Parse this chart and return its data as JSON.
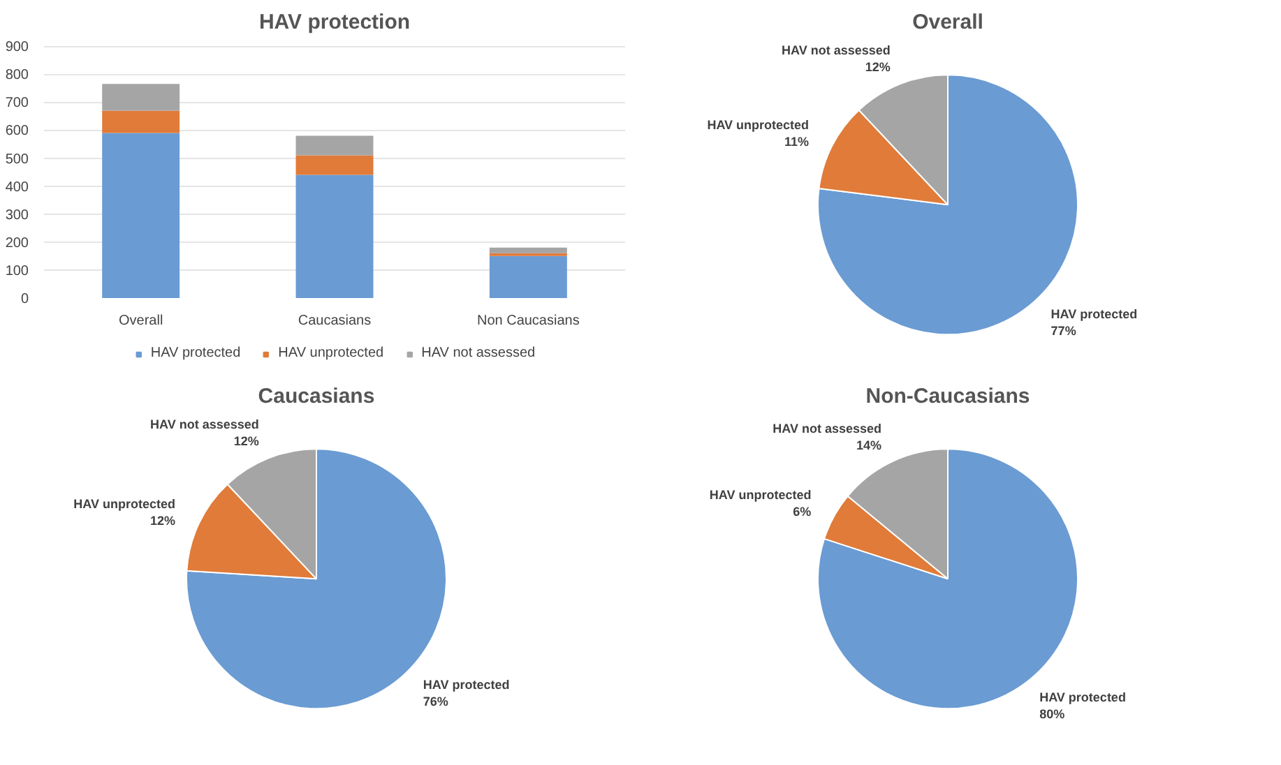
{
  "chart_data": [
    {
      "type": "bar",
      "title": "HAV protection",
      "categories": [
        "Overall",
        "Caucasians",
        "Non Caucasians"
      ],
      "stacked": true,
      "ylim": [
        0,
        900
      ],
      "yticks": [
        0,
        100,
        200,
        300,
        400,
        500,
        600,
        700,
        800,
        900
      ],
      "grid": "y",
      "legend": "bottom",
      "series": [
        {
          "name": "HAV protected",
          "color": "#6a9bd3",
          "values": [
            590,
            440,
            150
          ]
        },
        {
          "name": "HAV unprotected",
          "color": "#e07b39",
          "values": [
            80,
            70,
            10
          ]
        },
        {
          "name": "HAV not assessed",
          "color": "#a5a5a5",
          "values": [
            95,
            70,
            20
          ]
        }
      ]
    },
    {
      "type": "pie",
      "title": "Overall",
      "categories": [
        "HAV protected",
        "HAV unprotected",
        "HAV not assessed"
      ],
      "values": [
        77,
        11,
        12
      ],
      "value_labels": [
        "77%",
        "11%",
        "12%"
      ],
      "colors": [
        "#6a9bd3",
        "#e07b39",
        "#a5a5a5"
      ]
    },
    {
      "type": "pie",
      "title": "Caucasians",
      "categories": [
        "HAV protected",
        "HAV unprotected",
        "HAV not assessed"
      ],
      "values": [
        76,
        12,
        12
      ],
      "value_labels": [
        "76%",
        "12%",
        "12%"
      ],
      "colors": [
        "#6a9bd3",
        "#e07b39",
        "#a5a5a5"
      ]
    },
    {
      "type": "pie",
      "title": "Non-Caucasians",
      "categories": [
        "HAV protected",
        "HAV unprotected",
        "HAV not assessed"
      ],
      "values": [
        80,
        6,
        14
      ],
      "value_labels": [
        "80%",
        "6%",
        "14%"
      ],
      "colors": [
        "#6a9bd3",
        "#e07b39",
        "#a5a5a5"
      ]
    }
  ]
}
